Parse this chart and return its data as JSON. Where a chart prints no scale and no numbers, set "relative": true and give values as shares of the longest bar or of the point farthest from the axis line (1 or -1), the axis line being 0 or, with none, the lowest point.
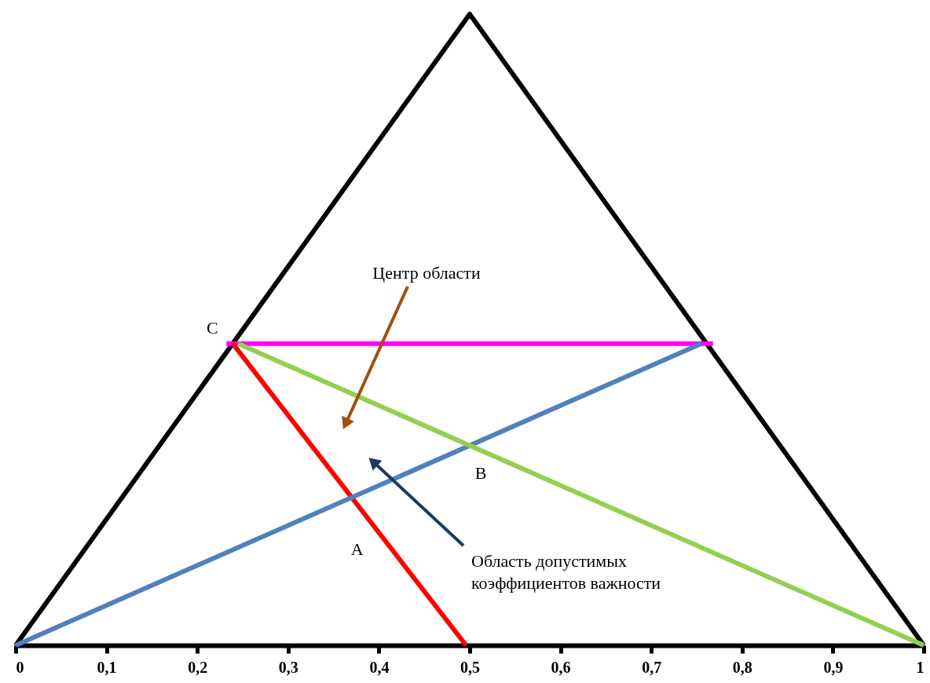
{
  "chart_data": {
    "type": "line",
    "relative": true,
    "marker": "none",
    "xlim": [
      0,
      1
    ],
    "xticks": [
      0,
      {
        "value": 0.1,
        "label": "0,1"
      },
      {
        "value": 0.2,
        "label": "0,2"
      },
      {
        "value": 0.3,
        "label": "0,3"
      },
      {
        "value": 0.4,
        "label": "0,4"
      },
      {
        "value": 0.5,
        "label": "0,5"
      },
      {
        "value": 0.6,
        "label": "0,6"
      },
      {
        "value": 0.7,
        "label": "0,7"
      },
      {
        "value": 0.8,
        "label": "0,8"
      },
      {
        "value": 0.9,
        "label": "0,9"
      },
      1
    ],
    "series": [
      {
        "color": "#000000",
        "x": [
          0,
          0.5,
          1
        ],
        "values": [
          0,
          1,
          0
        ]
      },
      {
        "color": "#ff00ff",
        "x": [
          0.232,
          0.768
        ],
        "values": [
          0.478,
          0.478
        ]
      },
      {
        "color": "#ff0000",
        "x": [
          0.239,
          0.496
        ],
        "values": [
          0.478,
          0
        ]
      },
      {
        "color": "#4f81bd",
        "x": [
          0,
          0.755
        ],
        "values": [
          0,
          0.478
        ]
      },
      {
        "color": "#92d050",
        "x": [
          0.245,
          1
        ],
        "values": [
          0.478,
          0
        ]
      }
    ],
    "annotations": [
      {
        "text": "C",
        "x": 0.24,
        "y": 0.478
      },
      {
        "text": "A",
        "x": 0.414,
        "y": 0.152
      },
      {
        "text": "B",
        "x": 0.5,
        "y": 0.317
      },
      "Центр области",
      "Область допустимых коэффициентов важности"
    ]
  }
}
